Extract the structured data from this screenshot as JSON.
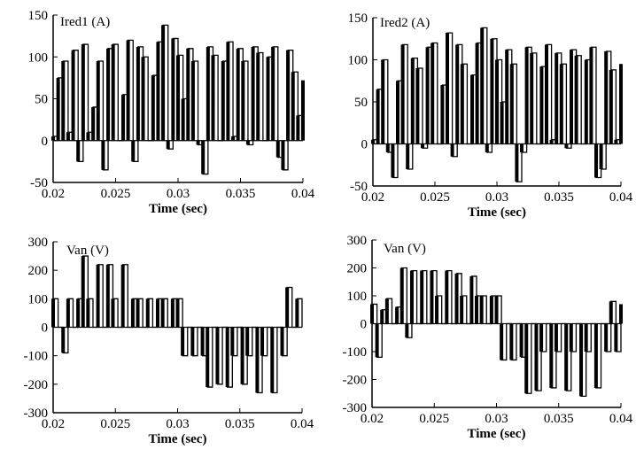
{
  "chart_data": [
    {
      "type": "line",
      "title": "Ired1 (A)",
      "xlabel": "Time (sec)",
      "ylabel": "",
      "xlim": [
        0.02,
        0.04
      ],
      "ylim": [
        -50,
        150
      ],
      "xticks": [
        "0.02",
        "0.025",
        "0.03",
        "0.035",
        "0.04"
      ],
      "yticks": [
        "150",
        "100",
        "50",
        "0",
        "-50"
      ],
      "series": [
        {
          "x": [
            0.02,
            0.0204,
            0.0208,
            0.0212,
            0.0216,
            0.022,
            0.0224,
            0.0228,
            0.0232,
            0.0236,
            0.024,
            0.0244,
            0.0248,
            0.0252,
            0.0256,
            0.026,
            0.0264,
            0.0268,
            0.0272,
            0.0276,
            0.028,
            0.0284,
            0.0288,
            0.0292,
            0.0296,
            0.03,
            0.0304,
            0.0308,
            0.0312,
            0.0316,
            0.032,
            0.0324,
            0.0328,
            0.0332,
            0.0336,
            0.034,
            0.0344,
            0.0348,
            0.0352,
            0.0356,
            0.036,
            0.0364,
            0.0368,
            0.0372,
            0.0376,
            0.038,
            0.0384,
            0.0388,
            0.0392,
            0.0396,
            0.04
          ],
          "y": [
            5,
            75,
            95,
            10,
            108,
            -25,
            115,
            10,
            40,
            95,
            -35,
            110,
            115,
            0,
            55,
            120,
            -25,
            112,
            100,
            0,
            78,
            118,
            138,
            -10,
            122,
            102,
            50,
            110,
            95,
            -5,
            -40,
            112,
            102,
            0,
            95,
            118,
            5,
            110,
            95,
            -5,
            112,
            105,
            0,
            100,
            112,
            -20,
            -35,
            108,
            82,
            30,
            72
          ]
        }
      ]
    },
    {
      "type": "line",
      "title": "Ired2 (A)",
      "xlabel": "Time (sec)",
      "ylabel": "",
      "xlim": [
        0.02,
        0.04
      ],
      "ylim": [
        -50,
        150
      ],
      "xticks": [
        "0.02",
        "0.025",
        "0.03",
        "0.035",
        "0.04"
      ],
      "yticks": [
        "150",
        "100",
        "50",
        "0",
        "-50"
      ],
      "series": [
        {
          "x": [
            0.02,
            0.0204,
            0.0208,
            0.0212,
            0.0216,
            0.022,
            0.0224,
            0.0228,
            0.0232,
            0.0236,
            0.024,
            0.0244,
            0.0248,
            0.0252,
            0.0256,
            0.026,
            0.0264,
            0.0268,
            0.0272,
            0.0276,
            0.028,
            0.0284,
            0.0288,
            0.0292,
            0.0296,
            0.03,
            0.0304,
            0.0308,
            0.0312,
            0.0316,
            0.032,
            0.0324,
            0.0328,
            0.0332,
            0.0336,
            0.034,
            0.0344,
            0.0348,
            0.0352,
            0.0356,
            0.036,
            0.0364,
            0.0368,
            0.0372,
            0.0376,
            0.038,
            0.0384,
            0.0388,
            0.0392,
            0.0396,
            0.04
          ],
          "y": [
            5,
            65,
            100,
            -10,
            -40,
            75,
            118,
            -30,
            102,
            90,
            -5,
            115,
            120,
            0,
            70,
            132,
            -15,
            118,
            95,
            0,
            82,
            120,
            138,
            -10,
            125,
            100,
            50,
            112,
            95,
            -45,
            -10,
            115,
            108,
            0,
            92,
            118,
            5,
            108,
            95,
            -5,
            112,
            105,
            0,
            100,
            115,
            -40,
            -30,
            110,
            88,
            5,
            95
          ]
        }
      ]
    },
    {
      "type": "line",
      "title": "Van (V)",
      "xlabel": "Time (sec)",
      "ylabel": "",
      "xlim": [
        0.02,
        0.04
      ],
      "ylim": [
        -300,
        300
      ],
      "xticks": [
        "0.02",
        "0.025",
        "0.03",
        "0.035",
        "0.04"
      ],
      "yticks": [
        "300",
        "200",
        "100",
        "0",
        "-100",
        "-200",
        "-300"
      ],
      "series": [
        {
          "x": [
            0.02,
            0.0204,
            0.0208,
            0.0212,
            0.0216,
            0.022,
            0.0224,
            0.0228,
            0.0232,
            0.0236,
            0.024,
            0.0244,
            0.0248,
            0.0252,
            0.0256,
            0.026,
            0.0264,
            0.0268,
            0.0272,
            0.0276,
            0.028,
            0.0284,
            0.0288,
            0.0292,
            0.0296,
            0.03,
            0.0304,
            0.0308,
            0.0312,
            0.0316,
            0.032,
            0.0324,
            0.0328,
            0.0332,
            0.0336,
            0.034,
            0.0344,
            0.0348,
            0.0352,
            0.0356,
            0.036,
            0.0364,
            0.0368,
            0.0372,
            0.0376,
            0.038,
            0.0384,
            0.0388,
            0.0392,
            0.0396,
            0.04
          ],
          "y": [
            100,
            0,
            -90,
            100,
            0,
            100,
            250,
            100,
            0,
            220,
            0,
            220,
            100,
            0,
            220,
            0,
            100,
            100,
            0,
            100,
            0,
            100,
            100,
            0,
            100,
            100,
            -100,
            0,
            -100,
            0,
            -100,
            -210,
            0,
            -200,
            0,
            -210,
            -100,
            0,
            -200,
            -100,
            0,
            -230,
            -100,
            0,
            -230,
            0,
            -100,
            140,
            0,
            100,
            0
          ]
        }
      ]
    },
    {
      "type": "line",
      "title": "Van (V)",
      "xlabel": "Time (sec)",
      "ylabel": "",
      "xlim": [
        0.02,
        0.04
      ],
      "ylim": [
        -300,
        300
      ],
      "xticks": [
        "0.02",
        "0.025",
        "0.03",
        "0.035",
        "0.04"
      ],
      "yticks": [
        "300",
        "200",
        "100",
        "0",
        "-100",
        "-200",
        "-300"
      ],
      "series": [
        {
          "x": [
            0.02,
            0.0204,
            0.0208,
            0.0212,
            0.0216,
            0.022,
            0.0224,
            0.0228,
            0.0232,
            0.0236,
            0.024,
            0.0244,
            0.0248,
            0.0252,
            0.0256,
            0.026,
            0.0264,
            0.0268,
            0.0272,
            0.0276,
            0.028,
            0.0284,
            0.0288,
            0.0292,
            0.0296,
            0.03,
            0.0304,
            0.0308,
            0.0312,
            0.0316,
            0.032,
            0.0324,
            0.0328,
            0.0332,
            0.0336,
            0.034,
            0.0344,
            0.0348,
            0.0352,
            0.0356,
            0.036,
            0.0364,
            0.0368,
            0.0372,
            0.0376,
            0.038,
            0.0384,
            0.0388,
            0.0392,
            0.0396,
            0.04
          ],
          "y": [
            70,
            -120,
            50,
            90,
            0,
            60,
            200,
            -50,
            190,
            0,
            190,
            0,
            190,
            100,
            0,
            190,
            0,
            180,
            100,
            0,
            170,
            100,
            100,
            0,
            100,
            100,
            -130,
            0,
            -130,
            0,
            -120,
            -250,
            0,
            -240,
            -100,
            0,
            -230,
            -100,
            0,
            -240,
            -100,
            0,
            -260,
            -100,
            0,
            -230,
            0,
            -100,
            80,
            -100,
            70
          ]
        }
      ]
    }
  ]
}
